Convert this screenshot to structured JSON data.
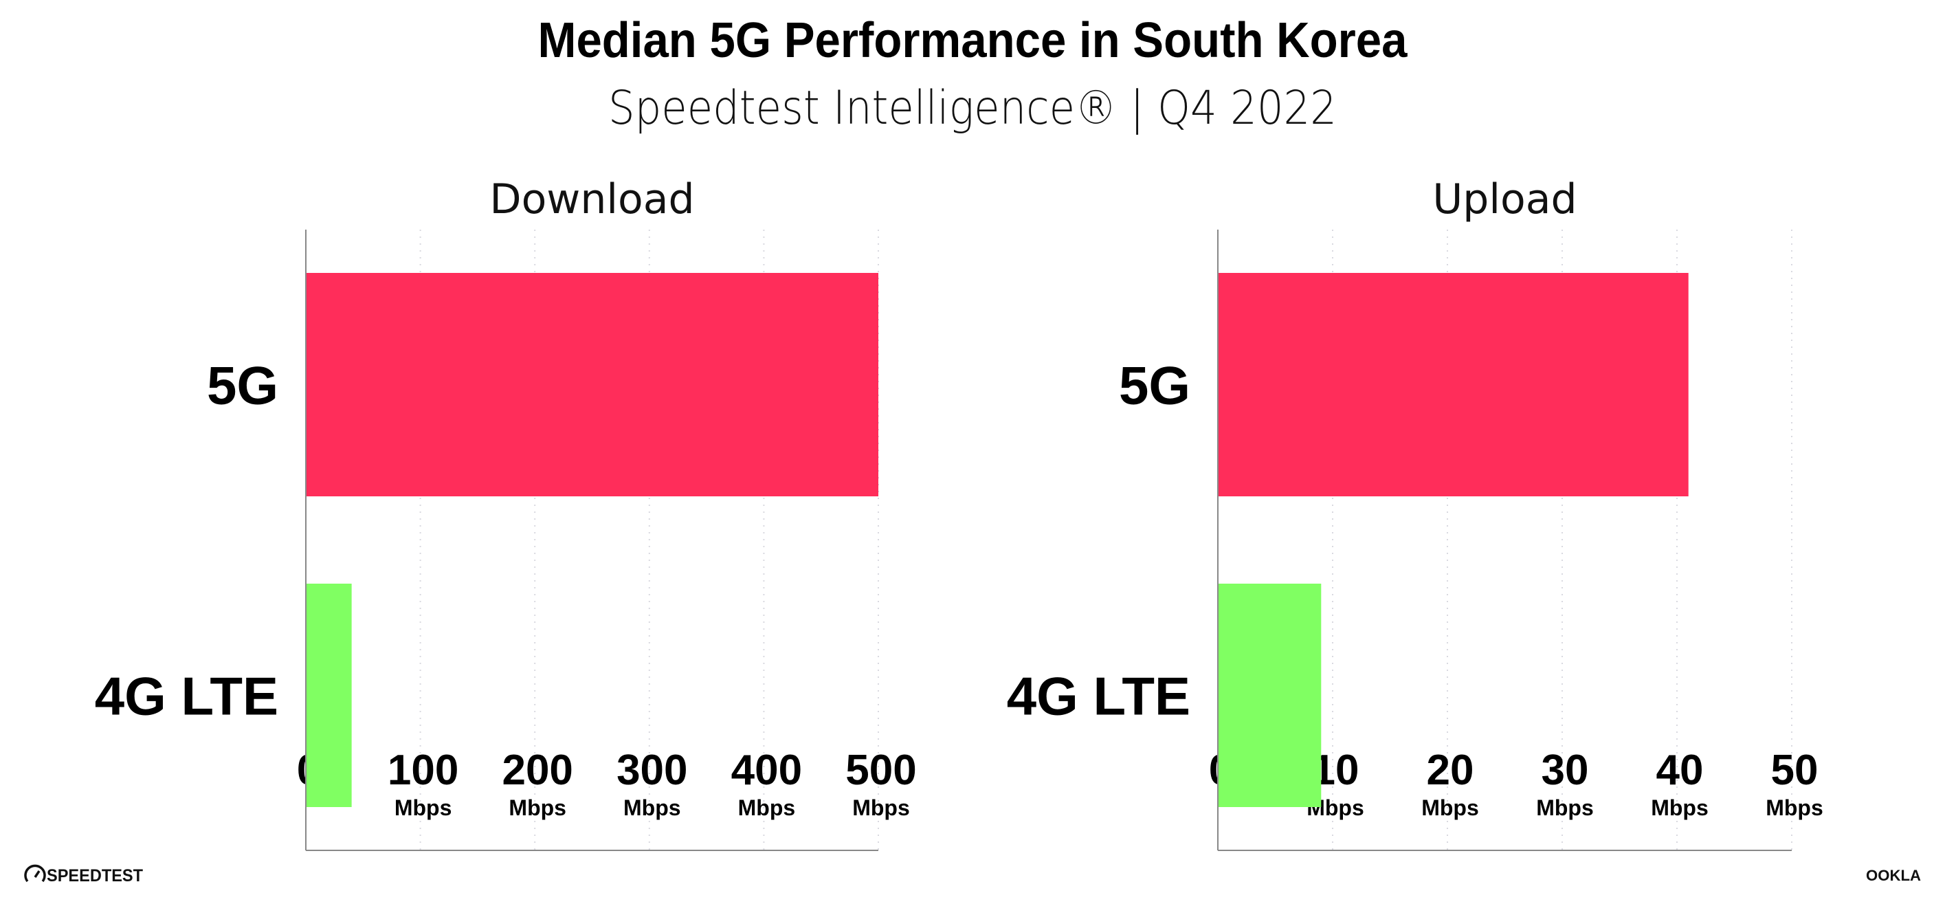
{
  "chart_data": {
    "title": "Median 5G Performance in South Korea",
    "subtitle": "Speedtest Intelligence® | Q4 2022",
    "colors": {
      "5G": "#ff2d5a",
      "4G LTE": "#80ff62",
      "axis": "#888888",
      "grid": "#d9d9e0"
    },
    "charts": [
      {
        "type": "bar",
        "orientation": "horizontal",
        "title": "Download",
        "categories": [
          "5G",
          "4G LTE"
        ],
        "values": [
          500,
          40
        ],
        "xlim": [
          0,
          500
        ],
        "ticks": [
          0,
          100,
          200,
          300,
          400,
          500
        ],
        "tick_labels": [
          "0",
          "100",
          "200",
          "300",
          "400",
          "500"
        ],
        "tick_units": [
          "",
          "Mbps",
          "Mbps",
          "Mbps",
          "Mbps",
          "Mbps"
        ],
        "grid": true
      },
      {
        "type": "bar",
        "orientation": "horizontal",
        "title": "Upload",
        "categories": [
          "5G",
          "4G LTE"
        ],
        "values": [
          41,
          9
        ],
        "xlim": [
          0,
          50
        ],
        "ticks": [
          0,
          10,
          20,
          30,
          40,
          50
        ],
        "tick_labels": [
          "0",
          "10",
          "20",
          "30",
          "40",
          "50"
        ],
        "tick_units": [
          "",
          "Mbps",
          "Mbps",
          "Mbps",
          "Mbps",
          "Mbps"
        ],
        "grid": true
      }
    ]
  },
  "footer": {
    "left_logo": "SPEEDTEST",
    "right_logo": "OOKLA",
    "left_icon": "speedometer-icon"
  }
}
